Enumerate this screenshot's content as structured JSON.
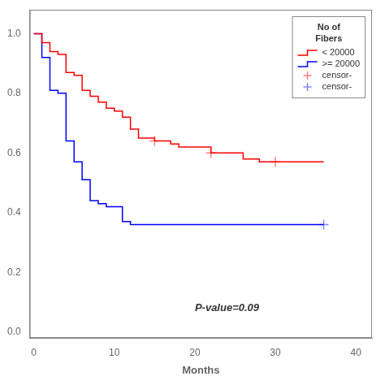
{
  "chart_data": {
    "type": "line",
    "xlabel": "Months",
    "xlim": [
      -0.5,
      42
    ],
    "ylim": [
      -0.02,
      1.08
    ],
    "xticks": [
      0,
      10,
      20,
      30,
      40
    ],
    "yticks": [
      {
        "value": 0.0,
        "label": "0.0"
      },
      0.2,
      0.4,
      0.6,
      0.8,
      {
        "value": 1.0,
        "label": "1.0"
      }
    ],
    "grid": false,
    "legend": "upper right",
    "legend_title": "No of\nFibers",
    "annotations": [
      {
        "text": "P-value=0.09",
        "x": 20,
        "y": 0.07
      }
    ],
    "series": [
      {
        "name": "< 20000",
        "type": "line",
        "line_style": "step",
        "marker": "none",
        "color": "#FF0000",
        "x": [
          0,
          1,
          2,
          3,
          4,
          5,
          6,
          7,
          8,
          9,
          10,
          11,
          12,
          13,
          15,
          17,
          18,
          20,
          22,
          26,
          28,
          30,
          35,
          36
        ],
        "values": [
          1.0,
          0.97,
          0.94,
          0.93,
          0.87,
          0.86,
          0.81,
          0.79,
          0.77,
          0.75,
          0.74,
          0.72,
          0.68,
          0.65,
          0.64,
          0.63,
          0.62,
          0.62,
          0.6,
          0.58,
          0.57,
          0.57,
          0.57,
          0.57
        ]
      },
      {
        "name": ">= 20000",
        "type": "line",
        "line_style": "step",
        "marker": "none",
        "color": "#0000FF",
        "x": [
          0,
          1,
          2,
          3,
          4,
          5,
          6,
          7,
          8,
          9,
          10,
          11,
          12,
          13,
          36
        ],
        "values": [
          1.0,
          0.92,
          0.81,
          0.8,
          0.64,
          0.57,
          0.51,
          0.44,
          0.43,
          0.42,
          0.42,
          0.37,
          0.36,
          0.36,
          0.36
        ]
      },
      {
        "name": "censor-",
        "type": "scatter",
        "marker": "plus",
        "color": "#FF8080",
        "x": [
          15,
          22,
          30
        ],
        "values": [
          0.64,
          0.6,
          0.57
        ]
      },
      {
        "name": "censor-",
        "type": "scatter",
        "marker": "plus",
        "color": "#8888FF",
        "x": [
          36
        ],
        "values": [
          0.36
        ]
      }
    ]
  }
}
